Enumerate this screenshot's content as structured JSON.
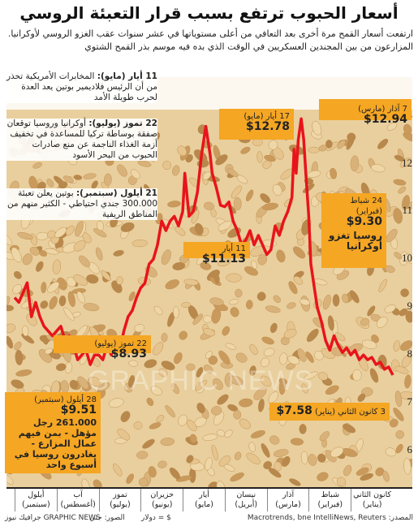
{
  "title": "أسعار الحبوب ترتفع بسبب قرار التعبئة الروسي",
  "subtitle": "ارتفعت أسعار القمح مرة أخرى بعد التعافي من أعلى مستوياتها في عشر سنوات عقب الغزو الروسي لأوكرانيا. المزارعون من بين المجندين العسكريين في الوقت الذي بده فيه موسم بذر القمح الشتوي",
  "watermark": "GRAPHIC NEWS",
  "annotations": [
    {
      "date": "11 أيار (مايو):",
      "text": "المخابرات الأمريكية تحذر من أن الرئيس فلاديمير بوتين يعد العدة لحرب طويلة الأمد"
    },
    {
      "date": "22 تموز (يوليو):",
      "text": "أوكرانيا وروسيا توقعان صفقة بوساطة تركيا للمساعدة في تخفيف أزمة الغذاء الناجمة عن منع صادرات الحبوب من البحر الأسود"
    },
    {
      "date": "21 أيلول (سبتمبر):",
      "text": "بوتين يعلن تعبئة 300.000 جندي احتياطي - الكثير منهم من المناطق الريفية"
    }
  ],
  "callouts": {
    "mar7": {
      "date": "7 آذار (مارس)",
      "value": "$12.94"
    },
    "may17": {
      "date": "17 أيار (مايو)",
      "value": "$12.78"
    },
    "feb24": {
      "date": "24 شباط (فبراير)",
      "value": "$9.30",
      "note": "روسيا تغزو أوكرانيا"
    },
    "may11": {
      "value": "$11.13",
      "date": "11 أيار"
    },
    "jul22": {
      "date": "22 تموز (يوليو)",
      "value": "$8.93"
    },
    "jan3": {
      "date": "3 كانون الثاني (يناير)",
      "value": "$7.58"
    },
    "sep28": {
      "date": "28 أيلول (سبتمبر)",
      "value": "$9.51",
      "note": "261.000 رجل مؤهل - بمن فيهم عمال المزارع - يغادرون روسيا في أسبوع واحد"
    }
  },
  "x_months": [
    {
      "ar": "كانون الثاني",
      "en": "(يناير)"
    },
    {
      "ar": "شباط",
      "en": "(فبراير)"
    },
    {
      "ar": "آذار",
      "en": "(مارس)"
    },
    {
      "ar": "نيسان",
      "en": "(أبريل)"
    },
    {
      "ar": "أيار",
      "en": "(مايو)"
    },
    {
      "ar": "حزيران",
      "en": "(يونيو)"
    },
    {
      "ar": "تموز",
      "en": "(يوليو)"
    },
    {
      "ar": "آب",
      "en": "(أغسطس)"
    },
    {
      "ar": "أيلول",
      "en": "(سبتمبر)"
    }
  ],
  "footer": {
    "source": "المصدر: Macrotrends, bne IntelliNews, Reuters",
    "unit": "$ = دولار",
    "photo": "الصور: جتي",
    "credit": "GRAPHIC NEWS جرافيك نيوز"
  },
  "colors": {
    "line": "#e8141b",
    "callout": "#f5a623",
    "wheat_light": "#e9cf9d",
    "wheat_dark": "#b88a4a"
  },
  "chart_data": {
    "type": "line",
    "title": "أسعار الحبوب ترتفع بسبب قرار التعبئة الروسي",
    "xlabel": "",
    "ylabel": "",
    "ylim": [
      6,
      13.3
    ],
    "yticks": [
      6,
      7,
      8,
      9,
      10,
      11,
      12,
      13
    ],
    "x_direction": "right-to-left",
    "x_range_months": [
      0,
      9
    ],
    "grid": false,
    "series": [
      {
        "x": [
          0.0,
          0.1,
          0.2,
          0.3,
          0.4,
          0.5,
          0.6,
          0.7,
          0.8,
          0.9,
          1.0,
          1.1,
          1.2,
          1.3,
          1.4,
          1.5,
          1.6,
          1.7,
          1.8,
          1.85,
          1.9,
          1.95,
          2.0,
          2.07,
          2.12,
          2.18,
          2.25,
          2.3,
          2.35,
          2.4,
          2.5,
          2.6,
          2.7,
          2.8,
          2.9,
          3.0,
          3.1,
          3.2,
          3.3,
          3.4,
          3.5,
          3.6,
          3.7,
          3.8,
          3.9,
          4.0,
          4.1,
          4.2,
          4.3,
          4.35,
          4.45,
          4.55,
          4.65,
          4.75,
          4.85,
          4.95,
          5.0,
          5.1,
          5.2,
          5.3,
          5.4,
          5.5,
          5.6,
          5.7,
          5.8,
          5.9,
          6.0,
          6.1,
          6.2,
          6.3,
          6.4,
          6.5,
          6.6,
          6.7,
          6.8,
          6.9,
          7.0,
          7.1,
          7.2,
          7.3,
          7.4,
          7.5,
          7.6,
          7.7,
          7.8,
          7.9,
          8.0,
          8.1,
          8.2,
          8.3,
          8.4,
          8.5,
          8.6,
          8.7,
          8.8,
          8.9,
          9.0
        ],
        "y": [
          7.58,
          7.75,
          7.7,
          7.85,
          7.8,
          7.95,
          7.9,
          8.0,
          7.9,
          8.1,
          8.0,
          8.15,
          8.05,
          8.2,
          8.4,
          8.1,
          8.3,
          8.7,
          9.0,
          9.3,
          9.6,
          9.9,
          10.9,
          11.8,
          12.5,
          12.94,
          12.5,
          11.8,
          12.3,
          11.3,
          11.0,
          10.8,
          10.5,
          10.7,
          10.2,
          10.1,
          10.3,
          10.5,
          10.3,
          10.6,
          10.4,
          10.3,
          10.6,
          10.8,
          11.2,
          11.1,
          11.13,
          11.5,
          11.8,
          12.2,
          12.78,
          12.2,
          11.4,
          11.0,
          10.9,
          11.8,
          11.0,
          10.7,
          10.9,
          10.8,
          10.6,
          10.8,
          10.3,
          10.0,
          9.9,
          9.5,
          9.4,
          9.2,
          8.93,
          8.8,
          8.5,
          8.1,
          8.3,
          8.0,
          8.2,
          7.9,
          8.0,
          8.0,
          7.8,
          8.1,
          8.0,
          7.9,
          8.2,
          8.4,
          8.3,
          8.6,
          8.5,
          8.4,
          8.5,
          8.6,
          8.8,
          9.1,
          8.8,
          9.51,
          9.3,
          9.1,
          9.2
        ]
      }
    ]
  }
}
